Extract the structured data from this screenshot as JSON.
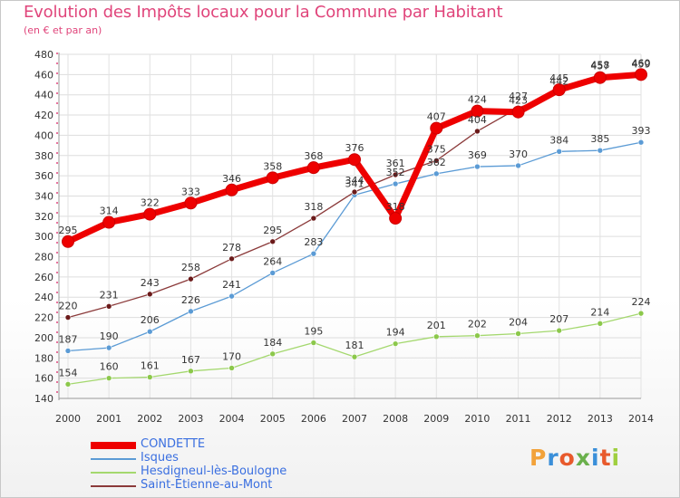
{
  "title": "Evolution des Impôts locaux pour la Commune par Habitant",
  "subtitle": "(en € et par an)",
  "logo": {
    "text": "Proxiti",
    "letters": [
      "P",
      "r",
      "o",
      "x",
      "i",
      "t",
      "i"
    ],
    "colors": [
      "#f2a23a",
      "#3a8fd9",
      "#e85a2c",
      "#6ab04c",
      "#3a8fd9",
      "#e85a2c",
      "#9fcf3f"
    ]
  },
  "chart_data": {
    "type": "line",
    "x": [
      2000,
      2001,
      2002,
      2003,
      2004,
      2005,
      2006,
      2007,
      2008,
      2009,
      2010,
      2011,
      2012,
      2013,
      2014
    ],
    "ylim": [
      140,
      480
    ],
    "yticks": [
      140,
      160,
      180,
      200,
      220,
      240,
      260,
      280,
      300,
      320,
      340,
      360,
      380,
      400,
      420,
      440,
      460,
      480
    ],
    "grid": true,
    "legend_position": "bottom-left",
    "series": [
      {
        "name": "CONDETTE",
        "color": "#ee0000",
        "marker": "#ee0000",
        "width": 7,
        "values": [
          295,
          314,
          322,
          333,
          346,
          358,
          368,
          376,
          318,
          407,
          424,
          423,
          445,
          457,
          460
        ]
      },
      {
        "name": "Isques",
        "color": "#5b9bd5",
        "marker": "#5b9bd5",
        "width": 1.3,
        "values": [
          187,
          190,
          206,
          226,
          241,
          264,
          283,
          341,
          352,
          362,
          369,
          370,
          384,
          385,
          393
        ]
      },
      {
        "name": "Hesdigneul-lès-Boulogne",
        "color": "#a4d86e",
        "marker": "#8cc84b",
        "width": 1.3,
        "values": [
          154,
          160,
          161,
          167,
          170,
          184,
          195,
          181,
          194,
          201,
          202,
          204,
          207,
          214,
          224
        ]
      },
      {
        "name": "Saint-Étienne-au-Mont",
        "color": "#8b3a3a",
        "marker": "#6b1a1a",
        "width": 1.3,
        "values": [
          220,
          231,
          243,
          258,
          278,
          295,
          318,
          344,
          361,
          375,
          404,
          427,
          442,
          458,
          459
        ]
      }
    ]
  }
}
